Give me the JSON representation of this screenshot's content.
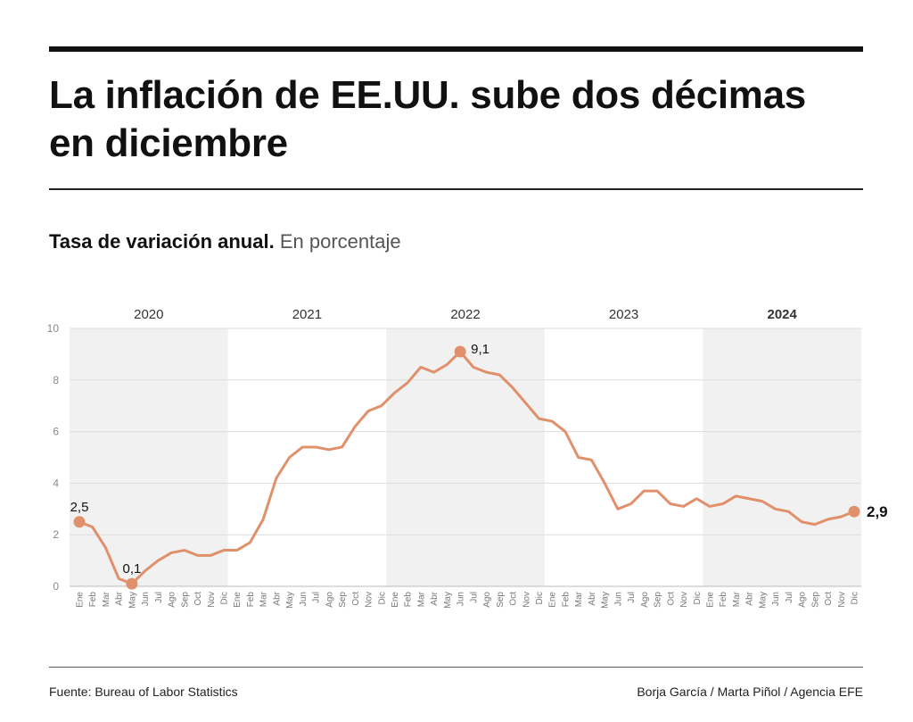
{
  "header": {
    "title": "La inflación de EE.UU. sube dos décimas en diciembre"
  },
  "subtitle": {
    "main": "Tasa de variación anual.",
    "unit": "En porcentaje"
  },
  "footer": {
    "source": "Fuente: Bureau of Labor Statistics",
    "credit": "Borja García / Marta Piñol / Agencia EFE"
  },
  "colors": {
    "line": "#e0906a",
    "band": "#f1f1f1",
    "grid": "#dddddd"
  },
  "chart_data": {
    "type": "line",
    "title": "Tasa de variación anual.",
    "ylabel": "En porcentaje",
    "ylim": [
      0,
      10
    ],
    "yticks": [
      0,
      2,
      4,
      6,
      8,
      10
    ],
    "grid": true,
    "years": [
      {
        "label": "2020",
        "bold": false,
        "shaded": true
      },
      {
        "label": "2021",
        "bold": false,
        "shaded": false
      },
      {
        "label": "2022",
        "bold": false,
        "shaded": true
      },
      {
        "label": "2023",
        "bold": false,
        "shaded": false
      },
      {
        "label": "2024",
        "bold": true,
        "shaded": true
      }
    ],
    "months": [
      "Ene",
      "Feb",
      "Mar",
      "Abr",
      "May",
      "Jun",
      "Jul",
      "Ago",
      "Sep",
      "Oct",
      "Nov",
      "Dic"
    ],
    "series": [
      {
        "values": [
          2.5,
          2.3,
          1.5,
          0.3,
          0.1,
          0.6,
          1.0,
          1.3,
          1.4,
          1.2,
          1.2,
          1.4,
          1.4,
          1.7,
          2.6,
          4.2,
          5.0,
          5.4,
          5.4,
          5.3,
          5.4,
          6.2,
          6.8,
          7.0,
          7.5,
          7.9,
          8.5,
          8.3,
          8.6,
          9.1,
          8.5,
          8.3,
          8.2,
          7.7,
          7.1,
          6.5,
          6.4,
          6.0,
          5.0,
          4.9,
          4.0,
          3.0,
          3.2,
          3.7,
          3.7,
          3.2,
          3.1,
          3.4,
          3.1,
          3.2,
          3.5,
          3.4,
          3.3,
          3.0,
          2.9,
          2.5,
          2.4,
          2.6,
          2.7,
          2.9
        ]
      }
    ],
    "annotations": [
      {
        "index": 0,
        "label": "2,5",
        "bold": false
      },
      {
        "index": 4,
        "label": "0,1",
        "bold": false
      },
      {
        "index": 29,
        "label": "9,1",
        "bold": false
      },
      {
        "index": 59,
        "label": "2,9",
        "bold": true
      }
    ]
  }
}
